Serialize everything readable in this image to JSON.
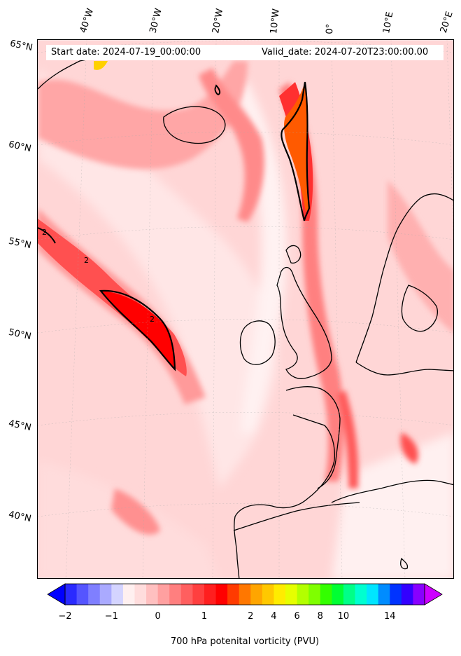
{
  "header": {
    "start_date": "Start date: 2024-07-19_00:00:00",
    "valid_date": "Valid_date: 2024-07-20T23:00:00.00"
  },
  "axes": {
    "longitude_labels": [
      "40°W",
      "30°W",
      "20°W",
      "10°W",
      "0°",
      "10°E",
      "20°E"
    ],
    "latitude_labels": [
      "65°N",
      "60°N",
      "55°N",
      "50°N",
      "45°N",
      "40°N"
    ]
  },
  "map": {
    "contour_label": "2",
    "fill_colors": [
      "#ffd6d6",
      "#ffb3b3",
      "#ff8a8a",
      "#ff5050",
      "#ff1a1a",
      "#ff6600",
      "#fff2f2"
    ]
  },
  "colorbar": {
    "label": "700 hPa potenital vorticity (PVU)",
    "tick_labels": [
      "−2",
      "−1",
      "0",
      "1",
      "2",
      "4",
      "6",
      "8",
      "10",
      "14"
    ],
    "colors": [
      "#0000ff",
      "#2a2aff",
      "#5555ff",
      "#7f7fff",
      "#aaaaff",
      "#d4d4ff",
      "#fff0f0",
      "#ffdddd",
      "#ffc0c0",
      "#ffa0a0",
      "#ff7f7f",
      "#ff5f5f",
      "#ff3f3f",
      "#ff1f1f",
      "#ff0000",
      "#ff3b00",
      "#ff7700",
      "#ffa500",
      "#ffc800",
      "#ffec00",
      "#e6ff00",
      "#b3ff00",
      "#7fff00",
      "#33ff00",
      "#00ff33",
      "#00ff88",
      "#00ffd0",
      "#00e5ff",
      "#008cff",
      "#0033ff",
      "#3300ff",
      "#8800ff",
      "#cc00ff"
    ]
  }
}
